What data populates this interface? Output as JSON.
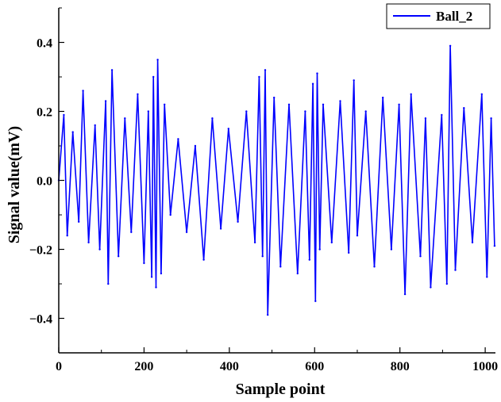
{
  "chart_data": {
    "type": "line",
    "xlabel": "Sample point",
    "ylabel": "Signal value(mV)",
    "xlim": [
      0,
      1024
    ],
    "ylim": [
      -0.5,
      0.5
    ],
    "x_ticks": [
      0,
      200,
      400,
      600,
      800,
      1000
    ],
    "x_tick_labels": [
      "0",
      "200",
      "400",
      "600",
      "800",
      "1000"
    ],
    "y_ticks": [
      -0.4,
      -0.2,
      0.0,
      0.2,
      0.4
    ],
    "y_tick_labels": [
      "−0.4",
      "−0.2",
      "0.0",
      "0.2",
      "0.4"
    ],
    "legend_position": "top-right",
    "grid": false,
    "series": [
      {
        "name": "Ball_2",
        "color": "#0000ff",
        "x": [
          0,
          12,
          20,
          33,
          47,
          57,
          70,
          85,
          96,
          110,
          116,
          125,
          140,
          155,
          170,
          185,
          200,
          210,
          218,
          222,
          228,
          232,
          240,
          248,
          262,
          280,
          300,
          320,
          340,
          360,
          380,
          398,
          420,
          440,
          460,
          470,
          478,
          484,
          490,
          505,
          520,
          540,
          560,
          578,
          588,
          596,
          602,
          606,
          612,
          620,
          640,
          660,
          680,
          692,
          700,
          720,
          740,
          760,
          780,
          798,
          812,
          826,
          848,
          860,
          872,
          898,
          910,
          918,
          930,
          950,
          970,
          992,
          1004,
          1014,
          1022
        ],
        "values": [
          0.0,
          0.19,
          -0.16,
          0.14,
          -0.12,
          0.26,
          -0.18,
          0.16,
          -0.2,
          0.23,
          -0.3,
          0.32,
          -0.22,
          0.18,
          -0.15,
          0.25,
          -0.24,
          0.2,
          -0.28,
          0.3,
          -0.31,
          0.35,
          -0.27,
          0.22,
          -0.1,
          0.12,
          -0.15,
          0.1,
          -0.23,
          0.18,
          -0.14,
          0.15,
          -0.12,
          0.2,
          -0.18,
          0.3,
          -0.22,
          0.32,
          -0.39,
          0.24,
          -0.25,
          0.22,
          -0.27,
          0.2,
          -0.23,
          0.28,
          -0.35,
          0.31,
          -0.2,
          0.22,
          -0.18,
          0.23,
          -0.21,
          0.29,
          -0.16,
          0.2,
          -0.25,
          0.24,
          -0.2,
          0.22,
          -0.33,
          0.25,
          -0.22,
          0.18,
          -0.31,
          0.19,
          -0.3,
          0.39,
          -0.26,
          0.21,
          -0.18,
          0.25,
          -0.28,
          0.18,
          -0.19
        ]
      }
    ]
  }
}
